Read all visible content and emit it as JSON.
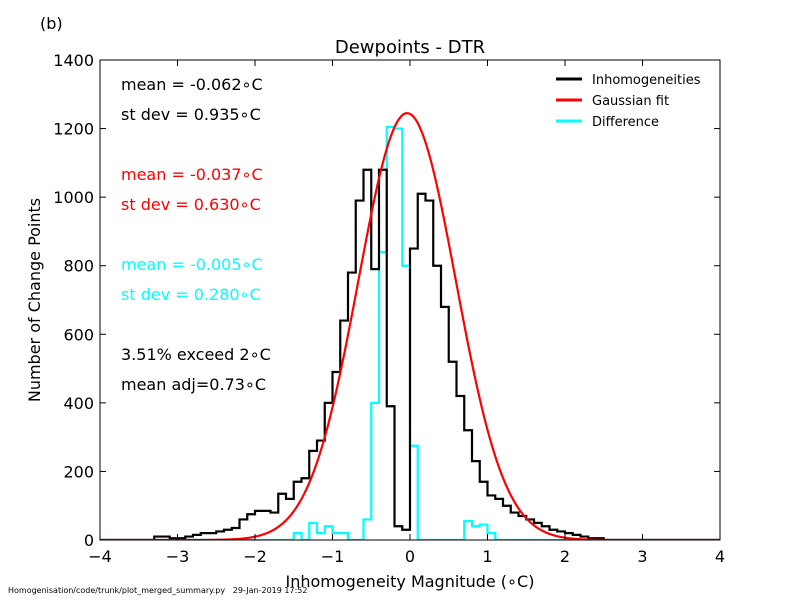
{
  "panel_label": "(b)",
  "footer": {
    "script_path": "Homogenisation/code/trunk/plot_merged_summary.py",
    "timestamp": "29-Jan-2019 17:52"
  },
  "chart_data": {
    "type": "line",
    "title": "Dewpoints - DTR",
    "xlabel": "Inhomogeneity Magnitude (∘C)",
    "ylabel": "Number of Change Points",
    "xlim": [
      -4,
      4
    ],
    "ylim": [
      0,
      1400
    ],
    "xticks": [
      -4,
      -3,
      -2,
      -1,
      0,
      1,
      2,
      3,
      4
    ],
    "yticks": [
      0,
      200,
      400,
      600,
      800,
      1000,
      1200,
      1400
    ],
    "grid": false,
    "legend_position": "top-right",
    "bin_edges": [
      -4.0,
      -3.9,
      -3.8,
      -3.7,
      -3.6,
      -3.5,
      -3.4,
      -3.3,
      -3.2,
      -3.1,
      -3.0,
      -2.9,
      -2.8,
      -2.7,
      -2.6,
      -2.5,
      -2.4,
      -2.3,
      -2.2,
      -2.1,
      -2.0,
      -1.9,
      -1.8,
      -1.7,
      -1.6,
      -1.5,
      -1.4,
      -1.3,
      -1.2,
      -1.1,
      -1.0,
      -0.9,
      -0.8,
      -0.7,
      -0.6,
      -0.5,
      -0.4,
      -0.3,
      -0.2,
      -0.1,
      0.0,
      0.1,
      0.2,
      0.3,
      0.4,
      0.5,
      0.6,
      0.7,
      0.8,
      0.9,
      1.0,
      1.1,
      1.2,
      1.3,
      1.4,
      1.5,
      1.6,
      1.7,
      1.8,
      1.9,
      2.0,
      2.1,
      2.2,
      2.3,
      2.4,
      2.5,
      2.6,
      2.7,
      2.8,
      2.9,
      3.0,
      3.1,
      3.2,
      3.3,
      3.4,
      3.5,
      3.6,
      3.7,
      3.8,
      3.9,
      4.0
    ],
    "series": [
      {
        "name": "Inhomogeneities",
        "color": "#000000",
        "style": "step",
        "values": [
          0,
          0,
          0,
          0,
          0,
          0,
          0,
          10,
          10,
          5,
          5,
          10,
          15,
          20,
          20,
          25,
          30,
          35,
          60,
          75,
          85,
          85,
          80,
          135,
          120,
          170,
          180,
          260,
          290,
          400,
          490,
          640,
          780,
          990,
          1080,
          790,
          1080,
          390,
          40,
          30,
          850,
          1010,
          990,
          800,
          680,
          520,
          420,
          320,
          230,
          170,
          130,
          120,
          100,
          80,
          70,
          60,
          50,
          40,
          30,
          25,
          20,
          15,
          10,
          5,
          5,
          0,
          0,
          0,
          0,
          0,
          0,
          0,
          0,
          0,
          0,
          0,
          0,
          0,
          0,
          0
        ]
      },
      {
        "name": "Gaussian fit",
        "color": "#ff0000",
        "style": "line",
        "mean": -0.037,
        "sd": 0.63,
        "peak": 1245
      },
      {
        "name": "Difference",
        "color": "#00ffff",
        "style": "step",
        "values": [
          0,
          0,
          0,
          0,
          0,
          0,
          0,
          0,
          0,
          0,
          0,
          0,
          0,
          0,
          0,
          0,
          0,
          0,
          0,
          0,
          0,
          0,
          0,
          0,
          0,
          20,
          0,
          50,
          20,
          40,
          20,
          20,
          0,
          0,
          60,
          400,
          840,
          1205,
          1200,
          800,
          275,
          0,
          0,
          0,
          0,
          0,
          0,
          55,
          40,
          45,
          20,
          0,
          0,
          0,
          0,
          0,
          0,
          0,
          0,
          0,
          0,
          0,
          0,
          0,
          0,
          0,
          0,
          0,
          0,
          0,
          0,
          0,
          0,
          0,
          0,
          0,
          0,
          0,
          0,
          0
        ]
      }
    ],
    "annotations": [
      {
        "text": "mean = -0.062∘C",
        "color": "#000000"
      },
      {
        "text": "st dev =  0.935∘C",
        "color": "#000000"
      },
      {
        "text": "mean = -0.037∘C",
        "color": "#ff0000"
      },
      {
        "text": "st dev =  0.630∘C",
        "color": "#ff0000"
      },
      {
        "text": "mean = -0.005∘C",
        "color": "#00ffff"
      },
      {
        "text": "st dev =  0.280∘C",
        "color": "#00ffff"
      },
      {
        "text": "3.51% exceed 2∘C",
        "color": "#000000"
      },
      {
        "text": "mean adj=0.73∘C",
        "color": "#000000"
      }
    ]
  }
}
